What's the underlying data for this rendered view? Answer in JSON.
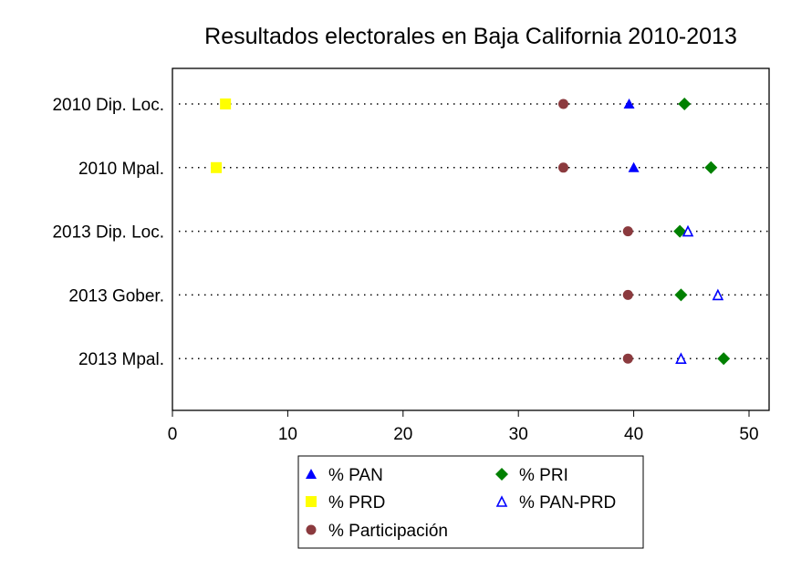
{
  "chart_data": {
    "type": "scatter",
    "title": "Resultados electorales en Baja California 2010-2013",
    "xlabel": "",
    "ylabel": "",
    "xlim": [
      0,
      51.7
    ],
    "xticks": [
      0,
      10,
      20,
      30,
      40,
      50
    ],
    "categories": [
      "2010 Dip. Loc.",
      "2010 Mpal.",
      "2013 Dip. Loc.",
      "2013 Gober.",
      "2013 Mpal."
    ],
    "grid": "dotted horizontal lines per category",
    "legend_position": "bottom",
    "series": [
      {
        "name": "% PAN",
        "marker": "triangle-filled",
        "color": "#0000ff",
        "values": [
          39.6,
          40.0,
          null,
          null,
          null
        ]
      },
      {
        "name": "% PRI",
        "marker": "diamond",
        "color": "#008000",
        "values": [
          44.4,
          46.7,
          44.0,
          44.1,
          47.8
        ]
      },
      {
        "name": "% PRD",
        "marker": "square",
        "color": "#ffff00",
        "values": [
          4.6,
          3.8,
          null,
          null,
          null
        ]
      },
      {
        "name": "% PAN-PRD",
        "marker": "triangle-hollow",
        "color": "#0000ff",
        "values": [
          null,
          null,
          44.7,
          47.3,
          44.1
        ]
      },
      {
        "name": "% Participación",
        "marker": "circle",
        "color": "#8b3a3e",
        "values": [
          33.9,
          33.9,
          39.5,
          39.5,
          39.5
        ]
      }
    ]
  }
}
